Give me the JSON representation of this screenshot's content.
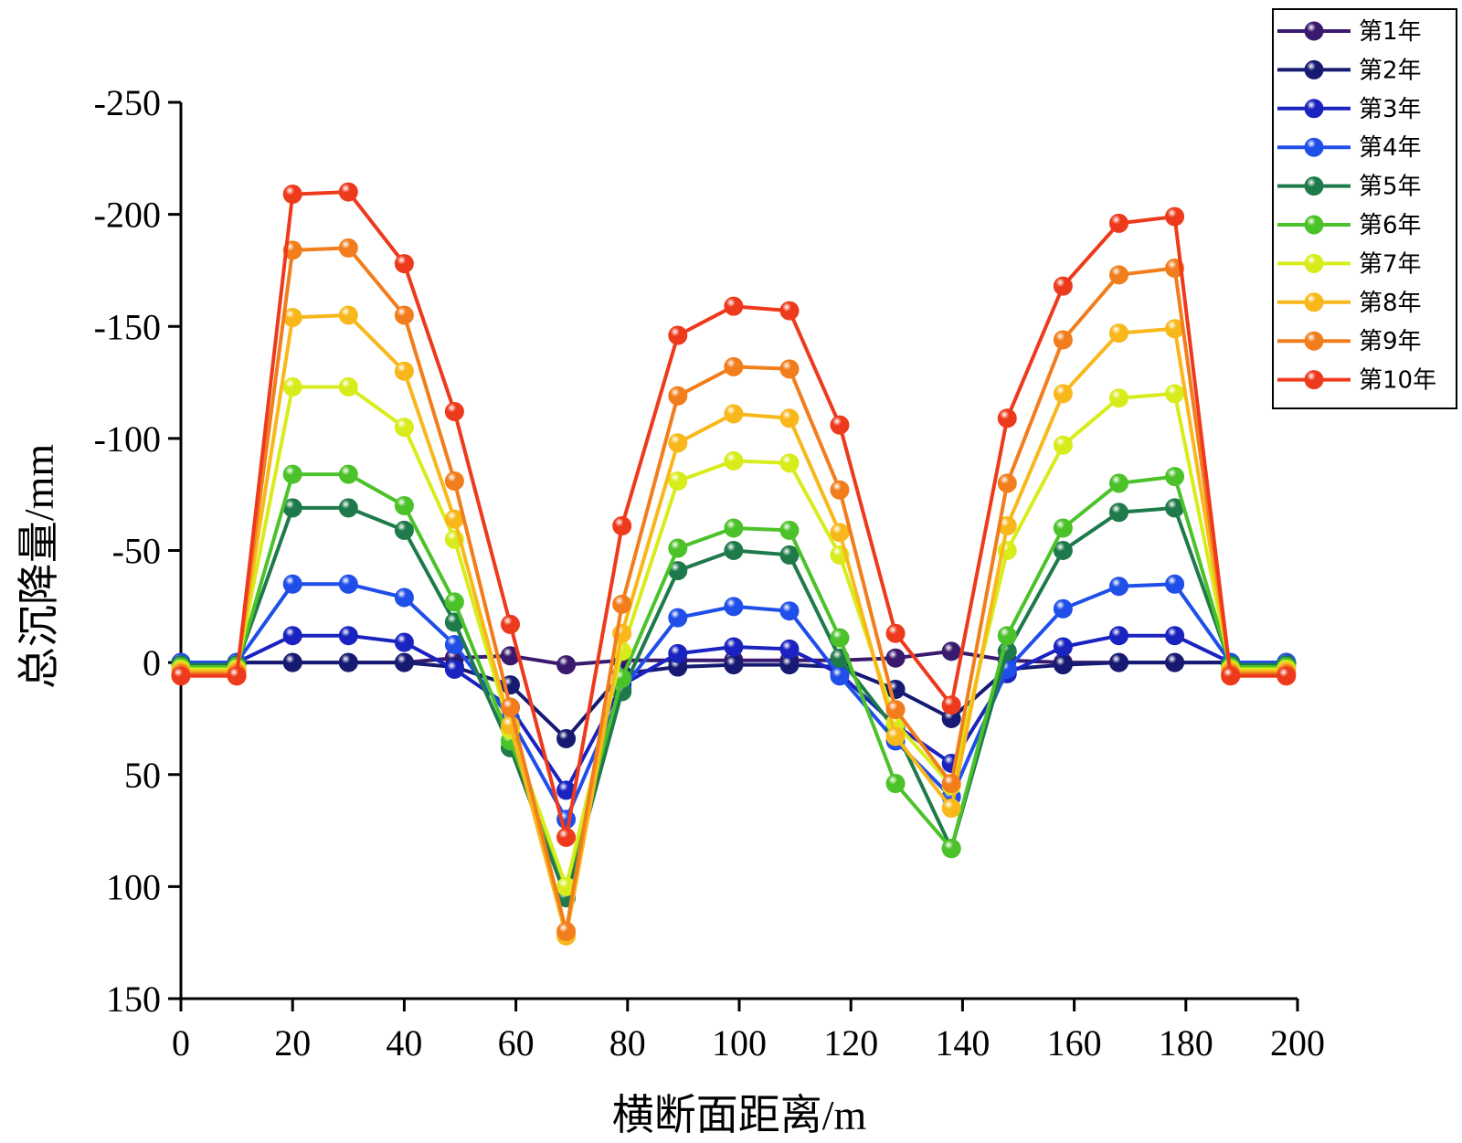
{
  "chart_data": {
    "type": "line",
    "title": "",
    "xlabel": "横断面距离/m",
    "ylabel": "总沉降量/mm",
    "xlim": [
      0,
      200
    ],
    "ylim": [
      150,
      -250
    ],
    "y_inverted": true,
    "x_ticks": [
      0,
      20,
      40,
      60,
      80,
      100,
      120,
      140,
      160,
      180,
      200
    ],
    "y_ticks": [
      -250,
      -200,
      -150,
      -100,
      -50,
      0,
      50,
      100,
      150
    ],
    "grid": false,
    "legend_position": "top-right",
    "x": [
      0,
      10,
      20,
      30,
      40,
      49,
      59,
      69,
      79,
      89,
      99,
      109,
      118,
      128,
      138,
      148,
      158,
      168,
      178,
      188,
      198
    ],
    "series": [
      {
        "name": "第1年",
        "color": "#3a1a6e",
        "values": [
          0,
          0,
          0,
          0,
          0,
          -2,
          -3,
          1,
          -1,
          -1,
          -1,
          -1,
          -1,
          -2,
          -5,
          -1,
          0,
          0,
          0,
          0,
          0
        ]
      },
      {
        "name": "第2年",
        "color": "#161a72",
        "values": [
          0,
          0,
          0,
          0,
          0,
          2,
          10,
          34,
          5,
          2,
          1,
          1,
          2,
          12,
          25,
          3,
          1,
          0,
          0,
          0,
          0
        ]
      },
      {
        "name": "第3年",
        "color": "#1a23c0",
        "values": [
          0,
          0,
          -12,
          -12,
          -9,
          3,
          20,
          57,
          10,
          -4,
          -7,
          -6,
          5,
          28,
          45,
          5,
          -7,
          -12,
          -12,
          0,
          0
        ]
      },
      {
        "name": "第4年",
        "color": "#1f4fe8",
        "values": [
          0,
          0,
          -35,
          -35,
          -29,
          -8,
          25,
          70,
          12,
          -20,
          -25,
          -23,
          6,
          35,
          60,
          3,
          -24,
          -34,
          -35,
          0,
          0
        ]
      },
      {
        "name": "第5年",
        "color": "#1e7a4a",
        "values": [
          1,
          1,
          -69,
          -69,
          -59,
          -18,
          38,
          105,
          13,
          -41,
          -50,
          -48,
          -2,
          30,
          83,
          -5,
          -50,
          -67,
          -69,
          1,
          1
        ]
      },
      {
        "name": "第6年",
        "color": "#4cc22a",
        "values": [
          2,
          2,
          -84,
          -84,
          -70,
          -27,
          35,
          100,
          7,
          -51,
          -60,
          -59,
          -11,
          54,
          83,
          -12,
          -60,
          -80,
          -83,
          2,
          2
        ]
      },
      {
        "name": "第7年",
        "color": "#d8ec1c",
        "values": [
          3,
          3,
          -123,
          -123,
          -105,
          -55,
          30,
          100,
          -5,
          -81,
          -90,
          -89,
          -48,
          27,
          55,
          -50,
          -97,
          -118,
          -120,
          3,
          3
        ]
      },
      {
        "name": "第8年",
        "color": "#f8b81c",
        "values": [
          4,
          4,
          -154,
          -155,
          -130,
          -64,
          28,
          122,
          -13,
          -98,
          -111,
          -109,
          -58,
          33,
          65,
          -61,
          -120,
          -147,
          -149,
          4,
          4
        ]
      },
      {
        "name": "第9年",
        "color": "#f27d1c",
        "values": [
          5,
          5,
          -184,
          -185,
          -155,
          -81,
          20,
          120,
          -26,
          -119,
          -132,
          -131,
          -77,
          21,
          54,
          -80,
          -144,
          -173,
          -176,
          5,
          5
        ]
      },
      {
        "name": "第10年",
        "color": "#ee3a1c",
        "values": [
          6,
          6,
          -209,
          -210,
          -178,
          -112,
          -17,
          78,
          -61,
          -146,
          -159,
          -157,
          -106,
          -13,
          19,
          -109,
          -168,
          -196,
          -199,
          6,
          6
        ]
      }
    ]
  }
}
